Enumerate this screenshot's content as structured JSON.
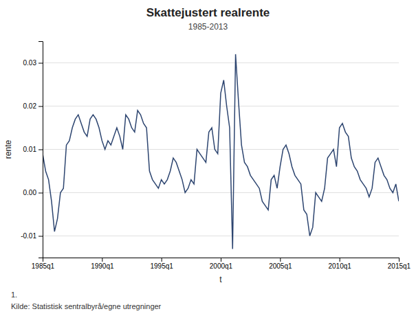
{
  "chart_data": {
    "type": "line",
    "title": "Skattejustert realrente",
    "subtitle": "1985-2013",
    "x_label": "t",
    "y_label": "rente",
    "annotations": [
      "1.",
      "Kilde: Statistisk sentralbyrå/egne utregninger"
    ],
    "color": "#2d4570",
    "grid": true,
    "categories": [
      "1985q1",
      null,
      null,
      null,
      null,
      null,
      null,
      null,
      null,
      null,
      null,
      null,
      null,
      null,
      null,
      null,
      null,
      null,
      null,
      null,
      "1990q1",
      null,
      null,
      null,
      null,
      null,
      null,
      null,
      null,
      null,
      null,
      null,
      null,
      null,
      null,
      null,
      null,
      null,
      null,
      null,
      "1995q1",
      null,
      null,
      null,
      null,
      null,
      null,
      null,
      null,
      null,
      null,
      null,
      null,
      null,
      null,
      null,
      null,
      null,
      null,
      null,
      "2000q1",
      null,
      null,
      null,
      null,
      null,
      null,
      null,
      null,
      null,
      null,
      null,
      null,
      null,
      null,
      null,
      null,
      null,
      null,
      null,
      "2005q1",
      null,
      null,
      null,
      null,
      null,
      null,
      null,
      null,
      null,
      null,
      null,
      null,
      null,
      null,
      null,
      null,
      null,
      null,
      null,
      "2010q1",
      null,
      null,
      null,
      null,
      null,
      null,
      null,
      null,
      null,
      null,
      null,
      null,
      null,
      null,
      null,
      null,
      null,
      null,
      null,
      "2015q1"
    ],
    "values": [
      0.009,
      0.005,
      0.003,
      -0.002,
      -0.009,
      -0.006,
      0.0,
      0.001,
      0.011,
      0.012,
      0.015,
      0.017,
      0.018,
      0.016,
      0.014,
      0.013,
      0.017,
      0.018,
      0.017,
      0.015,
      0.012,
      0.01,
      0.012,
      0.011,
      0.013,
      0.015,
      0.013,
      0.01,
      0.018,
      0.017,
      0.015,
      0.014,
      0.019,
      0.018,
      0.016,
      0.015,
      0.005,
      0.003,
      0.002,
      0.001,
      0.003,
      0.002,
      0.003,
      0.005,
      0.008,
      0.007,
      0.005,
      0.003,
      0.0,
      0.001,
      0.003,
      0.002,
      0.01,
      0.009,
      0.008,
      0.007,
      0.014,
      0.015,
      0.01,
      0.009,
      0.023,
      0.026,
      0.02,
      0.015,
      -0.013,
      0.032,
      0.021,
      0.011,
      0.007,
      0.006,
      0.004,
      0.003,
      0.002,
      0.001,
      -0.002,
      -0.003,
      -0.004,
      0.003,
      0.004,
      0.001,
      0.006,
      0.01,
      0.011,
      0.009,
      0.006,
      0.004,
      0.003,
      0.002,
      -0.004,
      -0.005,
      -0.01,
      -0.008,
      0.0,
      -0.001,
      -0.002,
      0.001,
      0.008,
      0.009,
      0.01,
      0.006,
      0.015,
      0.016,
      0.014,
      0.013,
      0.008,
      0.006,
      0.005,
      0.003,
      0.002,
      0.001,
      -0.001,
      0.001,
      0.007,
      0.008,
      0.006,
      0.004,
      0.003,
      0.001,
      0.0,
      0.002,
      -0.002
    ],
    "ylim": [
      -0.015,
      0.035
    ],
    "yticks": [
      -0.01,
      {
        "value": 0.0,
        "label": "0.00"
      },
      0.01,
      0.02,
      0.03
    ]
  }
}
